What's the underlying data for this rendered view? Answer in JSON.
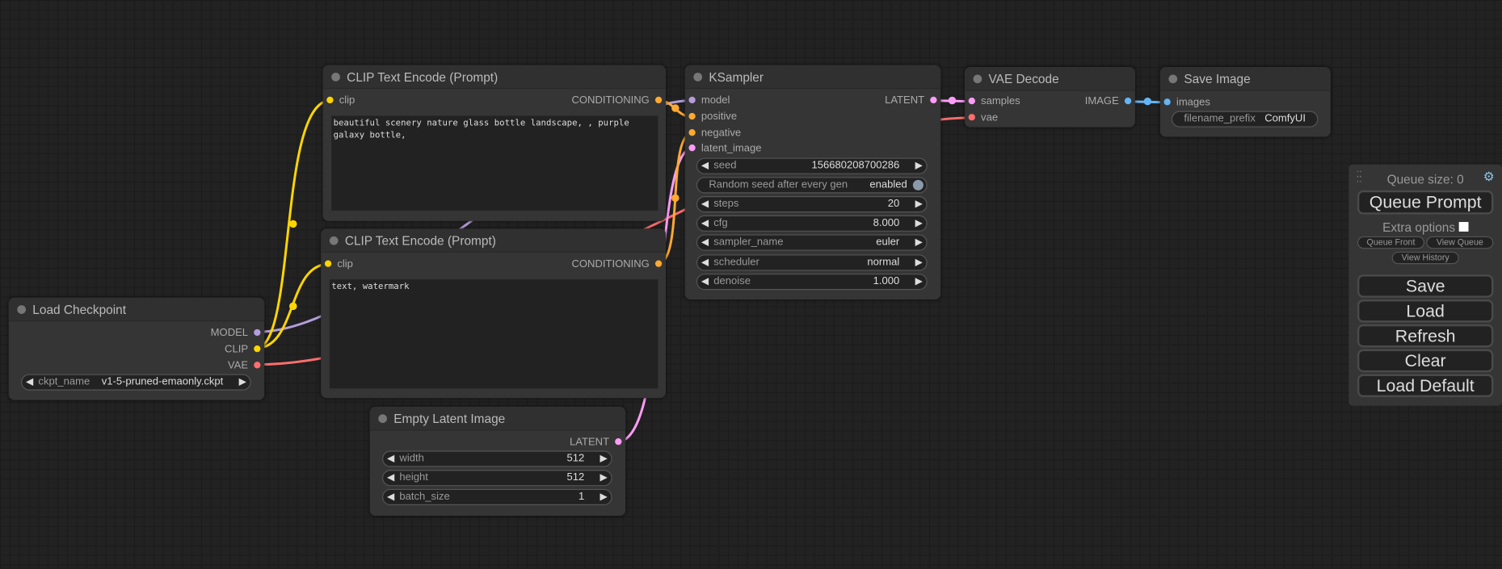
{
  "colors": {
    "clip": "#ffd500",
    "model": "#b39ddb",
    "vae": "#ff6e6e",
    "conditioning": "#ffa931",
    "latent": "#ff9cf9",
    "image": "#64b5f6"
  },
  "clip_pos": {
    "title": "CLIP Text Encode (Prompt)",
    "input": "clip",
    "output": "CONDITIONING",
    "text": "beautiful scenery nature glass bottle landscape, , purple galaxy bottle,"
  },
  "clip_neg": {
    "title": "CLIP Text Encode (Prompt)",
    "input": "clip",
    "output": "CONDITIONING",
    "text": "text, watermark"
  },
  "checkpoint": {
    "title": "Load Checkpoint",
    "outputs": [
      "MODEL",
      "CLIP",
      "VAE"
    ],
    "widget": {
      "name": "ckpt_name",
      "value": "v1-5-pruned-emaonly.ckpt"
    }
  },
  "latent": {
    "title": "Empty Latent Image",
    "output": "LATENT",
    "widgets": [
      {
        "name": "width",
        "value": "512"
      },
      {
        "name": "height",
        "value": "512"
      },
      {
        "name": "batch_size",
        "value": "1"
      }
    ]
  },
  "ksampler": {
    "title": "KSampler",
    "inputs": [
      "model",
      "positive",
      "negative",
      "latent_image"
    ],
    "output": "LATENT",
    "seed": {
      "name": "seed",
      "value": "156680208700286"
    },
    "random": {
      "name": "Random seed after every gen",
      "value": "enabled"
    },
    "widgets": [
      {
        "name": "steps",
        "value": "20"
      },
      {
        "name": "cfg",
        "value": "8.000"
      },
      {
        "name": "sampler_name",
        "value": "euler"
      },
      {
        "name": "scheduler",
        "value": "normal"
      },
      {
        "name": "denoise",
        "value": "1.000"
      }
    ]
  },
  "vae_decode": {
    "title": "VAE Decode",
    "inputs": [
      "samples",
      "vae"
    ],
    "output": "IMAGE"
  },
  "save_image": {
    "title": "Save Image",
    "input": "images",
    "widget": {
      "name": "filename_prefix",
      "value": "ComfyUI"
    }
  },
  "panel": {
    "queue_size": "Queue size: 0",
    "queue_prompt": "Queue Prompt",
    "extra_options": "Extra options",
    "queue_front": "Queue Front",
    "view_queue": "View Queue",
    "view_history": "View History",
    "save": "Save",
    "load": "Load",
    "refresh": "Refresh",
    "clear": "Clear",
    "load_default": "Load Default"
  }
}
